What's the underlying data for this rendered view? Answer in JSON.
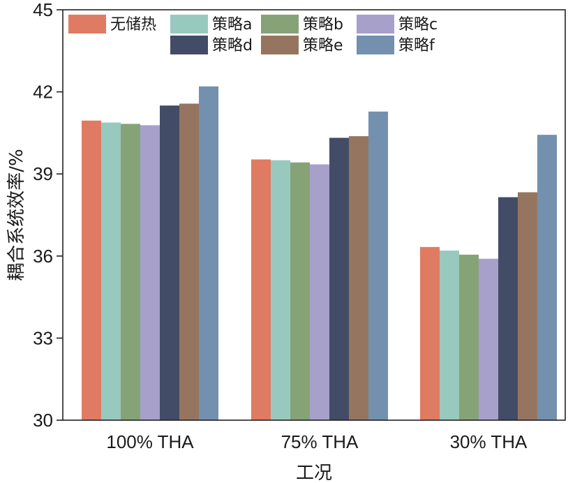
{
  "chart_data": {
    "type": "bar",
    "title": "",
    "xlabel": "工况",
    "ylabel": "耦合系统效率/%",
    "categories": [
      "100% THA",
      "75% THA",
      "30% THA"
    ],
    "ylim": [
      30,
      45
    ],
    "yticks": [
      30,
      33,
      36,
      39,
      42,
      45
    ],
    "grid": false,
    "legend_position": "top",
    "series": [
      {
        "name": "无储热",
        "color": "#E07B63",
        "values": [
          40.95,
          39.53,
          36.33
        ]
      },
      {
        "name": "策略a",
        "color": "#98C9BF",
        "values": [
          40.88,
          39.5,
          36.2
        ]
      },
      {
        "name": "策略b",
        "color": "#86A377",
        "values": [
          40.83,
          39.42,
          36.05
        ]
      },
      {
        "name": "策略c",
        "color": "#A7A0CB",
        "values": [
          40.78,
          39.35,
          35.9
        ]
      },
      {
        "name": "策略d",
        "color": "#434C67",
        "values": [
          41.5,
          40.32,
          38.15
        ]
      },
      {
        "name": "策略e",
        "color": "#957560",
        "values": [
          41.57,
          40.38,
          38.33
        ]
      },
      {
        "name": "策略f",
        "color": "#7390AF",
        "values": [
          42.2,
          41.28,
          40.43
        ]
      }
    ]
  }
}
